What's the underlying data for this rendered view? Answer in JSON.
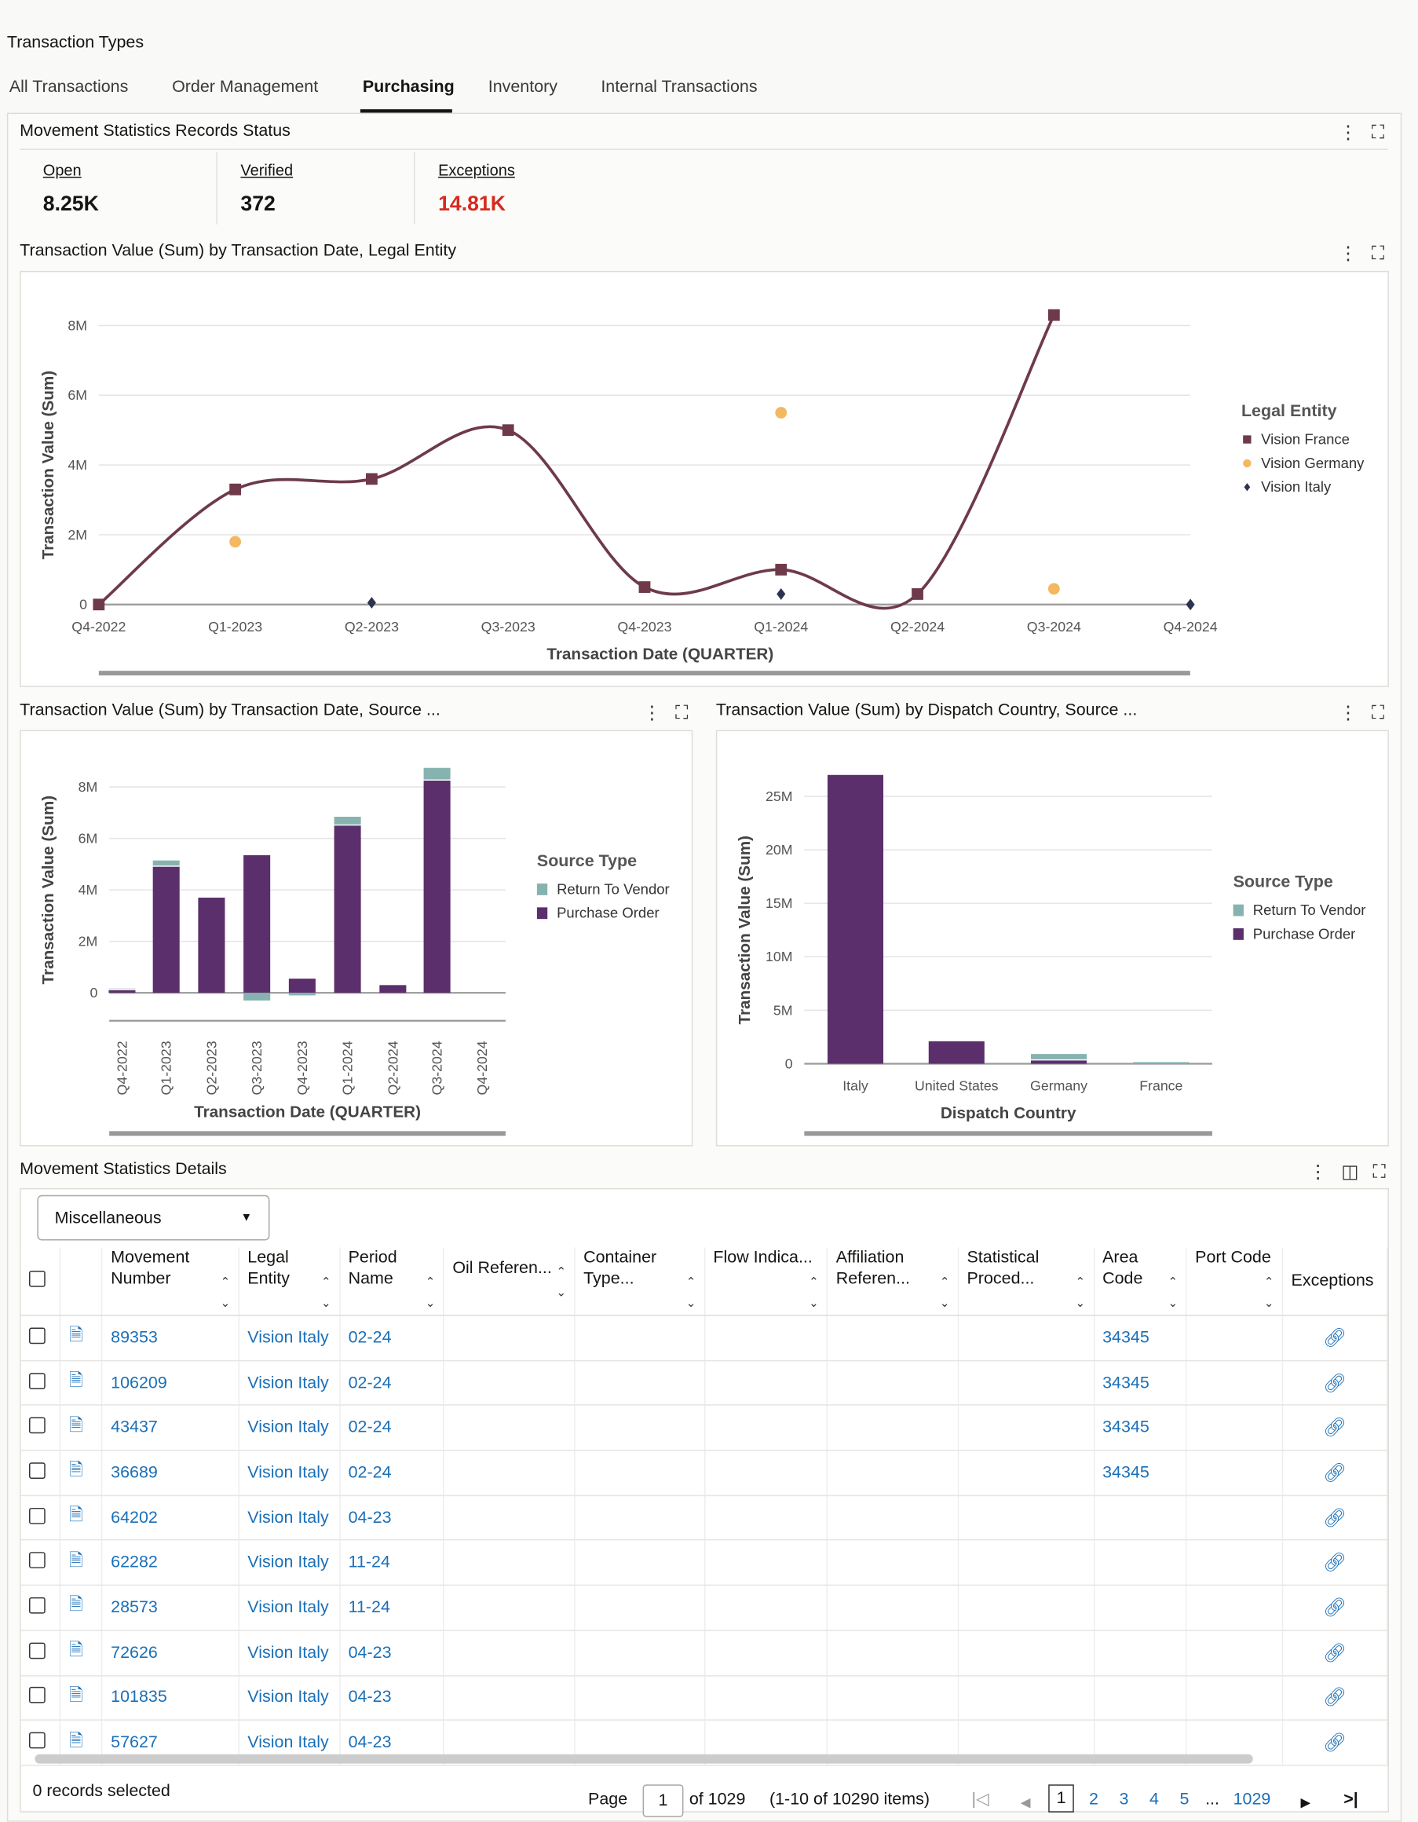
{
  "page_title": "Transaction Types",
  "tabs": [
    "All Transactions",
    "Order Management",
    "Purchasing",
    "Inventory",
    "Internal Transactions"
  ],
  "active_tab": "Purchasing",
  "status_panel": {
    "title": "Movement Statistics Records Status",
    "kpis": [
      {
        "label": "Open",
        "value": "8.25K"
      },
      {
        "label": "Verified",
        "value": "372"
      },
      {
        "label": "Exceptions",
        "value": "14.81K",
        "color": "#d62b1f"
      }
    ]
  },
  "chart_data": [
    {
      "type": "line",
      "title": "Transaction Value (Sum) by Transaction Date, Legal Entity",
      "xlabel": "Transaction Date (QUARTER)",
      "ylabel": "Transaction Value (Sum)",
      "categories": [
        "Q4-2022",
        "Q1-2023",
        "Q2-2023",
        "Q3-2023",
        "Q4-2023",
        "Q1-2024",
        "Q2-2024",
        "Q3-2024",
        "Q4-2024"
      ],
      "yticks": [
        "0",
        "2M",
        "4M",
        "6M",
        "8M"
      ],
      "ylim": [
        0,
        8000000
      ],
      "legend_title": "Legal Entity",
      "legend_position": "right",
      "series": [
        {
          "name": "Vision France",
          "color": "#6e3a4a",
          "marker": "square",
          "line": true,
          "values": [
            0,
            3300000,
            3600000,
            5000000,
            500000,
            1000000,
            300000,
            8300000,
            null
          ]
        },
        {
          "name": "Vision Germany",
          "color": "#f4b860",
          "marker": "circle",
          "line": false,
          "values": [
            null,
            1800000,
            null,
            null,
            null,
            5500000,
            null,
            450000,
            null
          ]
        },
        {
          "name": "Vision Italy",
          "color": "#2c3450",
          "marker": "diamond",
          "line": false,
          "values": [
            null,
            null,
            50000,
            null,
            null,
            300000,
            null,
            null,
            0
          ]
        }
      ]
    },
    {
      "type": "bar",
      "stacked": true,
      "title": "Transaction Value (Sum) by Transaction Date, Source ...",
      "xlabel": "Transaction Date (QUARTER)",
      "ylabel": "Transaction Value (Sum)",
      "categories": [
        "Q4-2022",
        "Q1-2023",
        "Q2-2023",
        "Q3-2023",
        "Q4-2023",
        "Q1-2024",
        "Q2-2024",
        "Q3-2024",
        "Q4-2024"
      ],
      "yticks": [
        "0",
        "2M",
        "4M",
        "6M",
        "8M"
      ],
      "ylim": [
        0,
        8000000
      ],
      "legend_title": "Source Type",
      "legend_position": "right",
      "series": [
        {
          "name": "Return To Vendor",
          "color": "#86b3b0",
          "values": [
            20000,
            200000,
            0,
            -300000,
            -100000,
            300000,
            0,
            450000,
            0
          ]
        },
        {
          "name": "Purchase Order",
          "color": "#5a2f6b",
          "values": [
            100000,
            4900000,
            3700000,
            5350000,
            550000,
            6500000,
            300000,
            8250000,
            0
          ]
        }
      ]
    },
    {
      "type": "bar",
      "stacked": true,
      "title": "Transaction Value (Sum) by Dispatch Country, Source ...",
      "xlabel": "Dispatch Country",
      "ylabel": "Transaction Value (Sum)",
      "categories": [
        "Italy",
        "United States",
        "Germany",
        "France"
      ],
      "yticks": [
        "0",
        "5M",
        "10M",
        "15M",
        "20M",
        "25M"
      ],
      "ylim": [
        0,
        25000000
      ],
      "legend_title": "Source Type",
      "legend_position": "right",
      "series": [
        {
          "name": "Return To Vendor",
          "color": "#86b3b0",
          "values": [
            0,
            0,
            500000,
            150000
          ]
        },
        {
          "name": "Purchase Order",
          "color": "#5a2f6b",
          "values": [
            27000000,
            2100000,
            300000,
            0
          ]
        }
      ]
    }
  ],
  "details": {
    "title": "Movement Statistics Details",
    "dropdown": "Miscellaneous",
    "columns": [
      "Movement Number",
      "Legal Entity",
      "Period Name",
      "Oil Referen...",
      "Container Type...",
      "Flow Indica...",
      "Affiliation Referen...",
      "Statistical Proced...",
      "Area Code",
      "Port Code",
      "Exceptions"
    ],
    "rows": [
      [
        "89353",
        "Vision Italy",
        "02-24",
        "34345"
      ],
      [
        "106209",
        "Vision Italy",
        "02-24",
        "34345"
      ],
      [
        "43437",
        "Vision Italy",
        "02-24",
        "34345"
      ],
      [
        "36689",
        "Vision Italy",
        "02-24",
        "34345"
      ],
      [
        "64202",
        "Vision Italy",
        "04-23",
        ""
      ],
      [
        "62282",
        "Vision Italy",
        "11-24",
        ""
      ],
      [
        "28573",
        "Vision Italy",
        "11-24",
        ""
      ],
      [
        "72626",
        "Vision Italy",
        "04-23",
        ""
      ],
      [
        "101835",
        "Vision Italy",
        "04-23",
        ""
      ],
      [
        "57627",
        "Vision Italy",
        "04-23",
        ""
      ]
    ],
    "footer": {
      "selected": "0 records selected",
      "page_label": "Page",
      "page": "1",
      "of": "of 1029",
      "range": "(1-10 of 10290 items)",
      "pages": [
        "1",
        "2",
        "3",
        "4",
        "5",
        "...",
        "1029"
      ]
    }
  }
}
